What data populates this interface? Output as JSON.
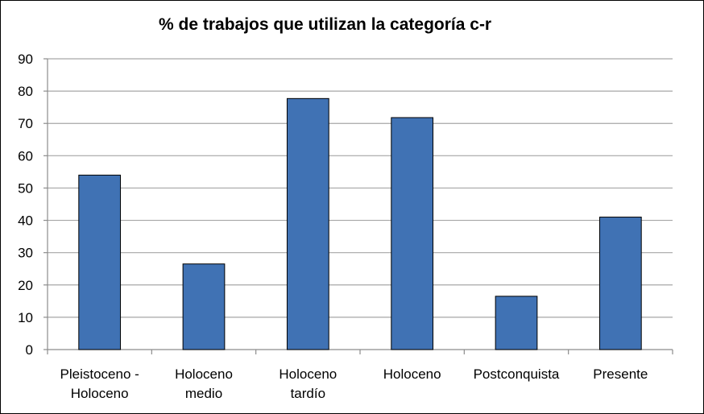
{
  "chart_data": {
    "type": "bar",
    "title": "% de trabajos que utilizan la categoría c-r",
    "categories": [
      [
        "Pleistoceno -",
        "Holoceno"
      ],
      [
        "Holoceno",
        "medio"
      ],
      [
        "Holoceno",
        "tardío"
      ],
      [
        "Holoceno"
      ],
      [
        "Postconquista"
      ],
      [
        "Presente"
      ]
    ],
    "values": [
      54,
      26.5,
      77.7,
      71.8,
      16.5,
      41
    ],
    "ylim": [
      0,
      90
    ],
    "yticks": [
      "0",
      "10",
      "20",
      "30",
      "40",
      "50",
      "60",
      "70",
      "80",
      "90"
    ],
    "grid": true,
    "bar_color": "#4072b4",
    "bar_edge_color": "#000000",
    "grid_color": "#a6a6a6"
  }
}
